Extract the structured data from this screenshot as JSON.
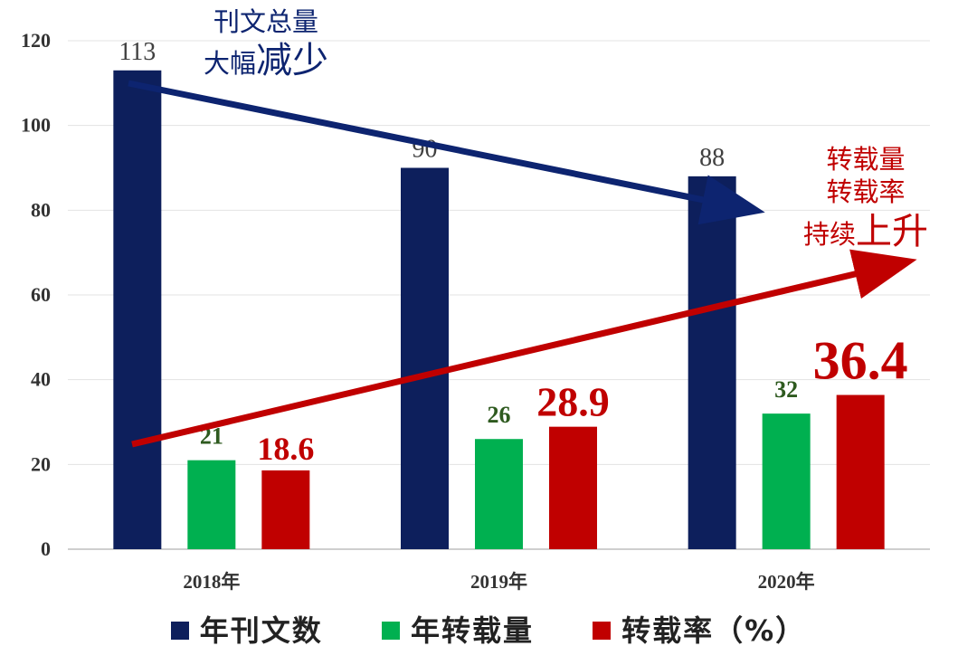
{
  "chart_data": {
    "type": "bar",
    "categories": [
      "2018年",
      "2019年",
      "2020年"
    ],
    "series": [
      {
        "name": "年刊文数",
        "values": [
          113,
          90,
          88
        ],
        "color": "#0d1f5c"
      },
      {
        "name": "年转载量",
        "values": [
          21,
          26,
          32
        ],
        "color": "#00b050"
      },
      {
        "name": "转载率（%）",
        "values": [
          18.6,
          28.9,
          36.4
        ],
        "color": "#c00000"
      }
    ],
    "yticks": [
      0,
      20,
      40,
      60,
      80,
      100,
      120
    ],
    "ylim": [
      0,
      120
    ],
    "grid": true,
    "legend_position": "bottom",
    "annotations": {
      "decrease": {
        "line1": "刊文总量",
        "line2a": "大幅",
        "line2b": "减少",
        "color": "#0d2470"
      },
      "increase": {
        "line1": "转载量",
        "line2": "转载率",
        "line3a": "持续",
        "line3b": "上升",
        "color": "#c00000"
      }
    }
  }
}
